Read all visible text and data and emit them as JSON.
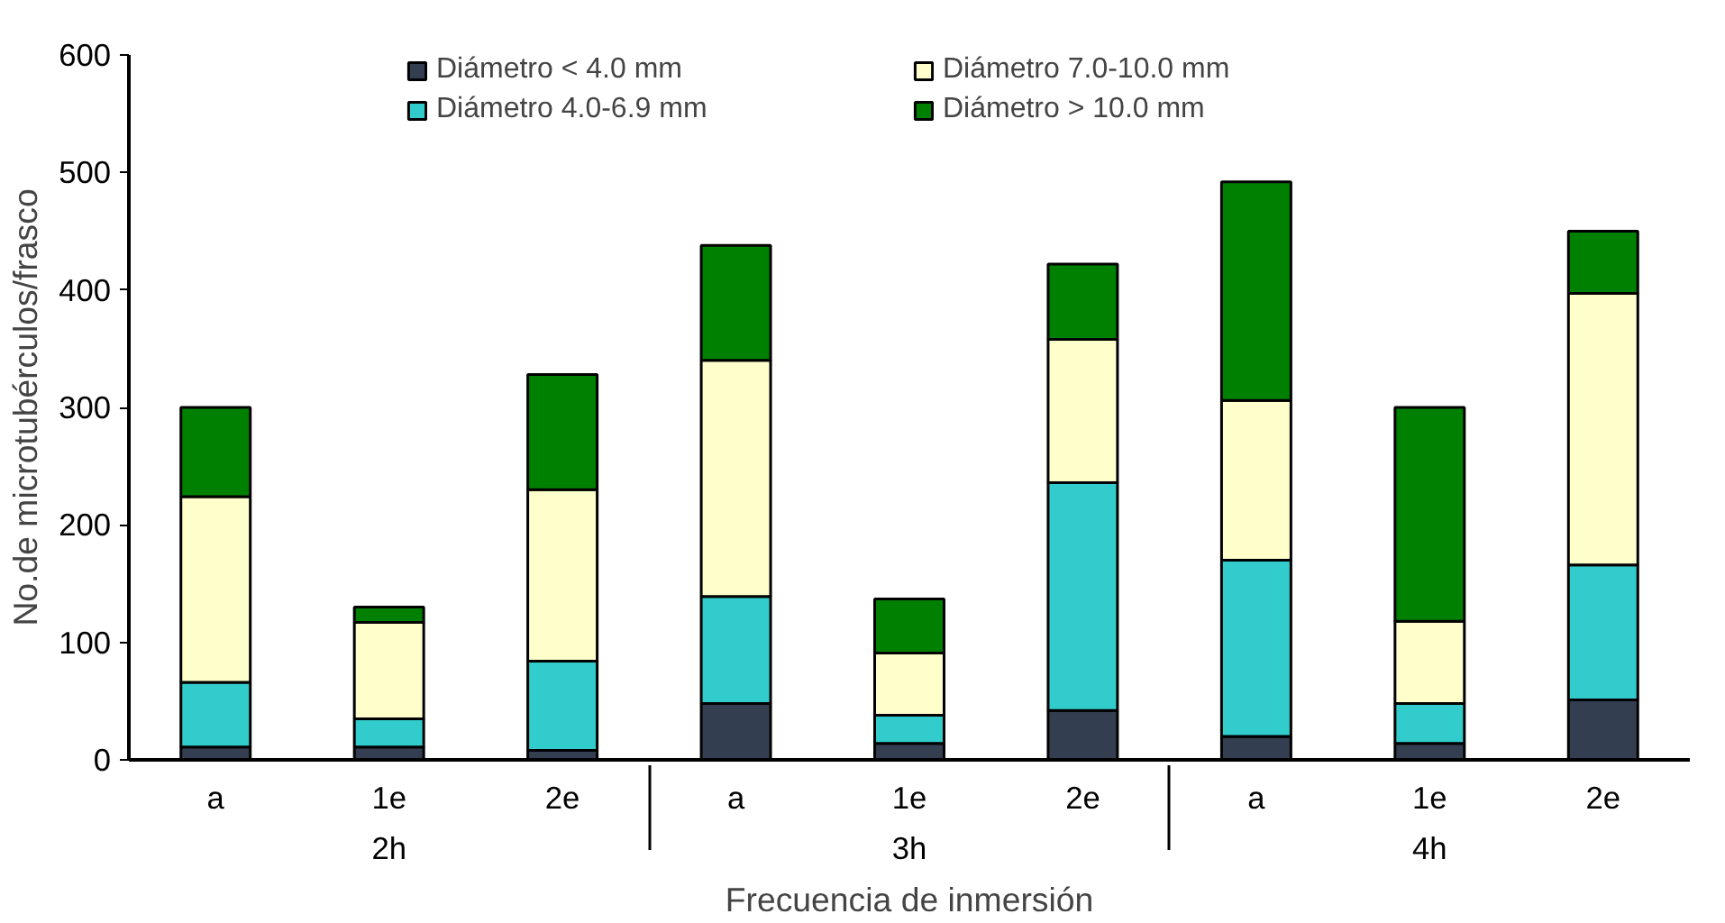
{
  "chart_data": {
    "type": "bar",
    "stacked": true,
    "xlabel": "Frecuencia de inmersión",
    "ylabel": "No.de microtubérculos/frasco",
    "categories": [
      "a",
      "1e",
      "2e",
      "a",
      "1e",
      "2e",
      "a",
      "1e",
      "2e"
    ],
    "annotations": [
      "2h",
      "3h",
      "4h"
    ],
    "series": [
      {
        "name": "Diámetro < 4.0 mm",
        "color": "#333f50",
        "values": [
          11,
          11,
          8,
          48,
          14,
          42,
          20,
          14,
          51
        ]
      },
      {
        "name": "Diámetro 4.0-6.9 mm",
        "color": "#33cccc",
        "values": [
          55,
          24,
          76,
          91,
          24,
          194,
          150,
          34,
          115
        ]
      },
      {
        "name": "Diámetro 7.0-10.0 mm",
        "color": "#ffffcc",
        "values": [
          158,
          82,
          146,
          201,
          53,
          122,
          136,
          70,
          231
        ]
      },
      {
        "name": "Diámetro > 10.0 mm",
        "color": "#008000",
        "values": [
          76,
          13,
          98,
          98,
          46,
          64,
          186,
          182,
          53
        ]
      }
    ],
    "ylim": [
      0,
      600
    ],
    "yticks": [
      0,
      100,
      200,
      300,
      400,
      500,
      600
    ],
    "grid": false,
    "legend": "top"
  }
}
